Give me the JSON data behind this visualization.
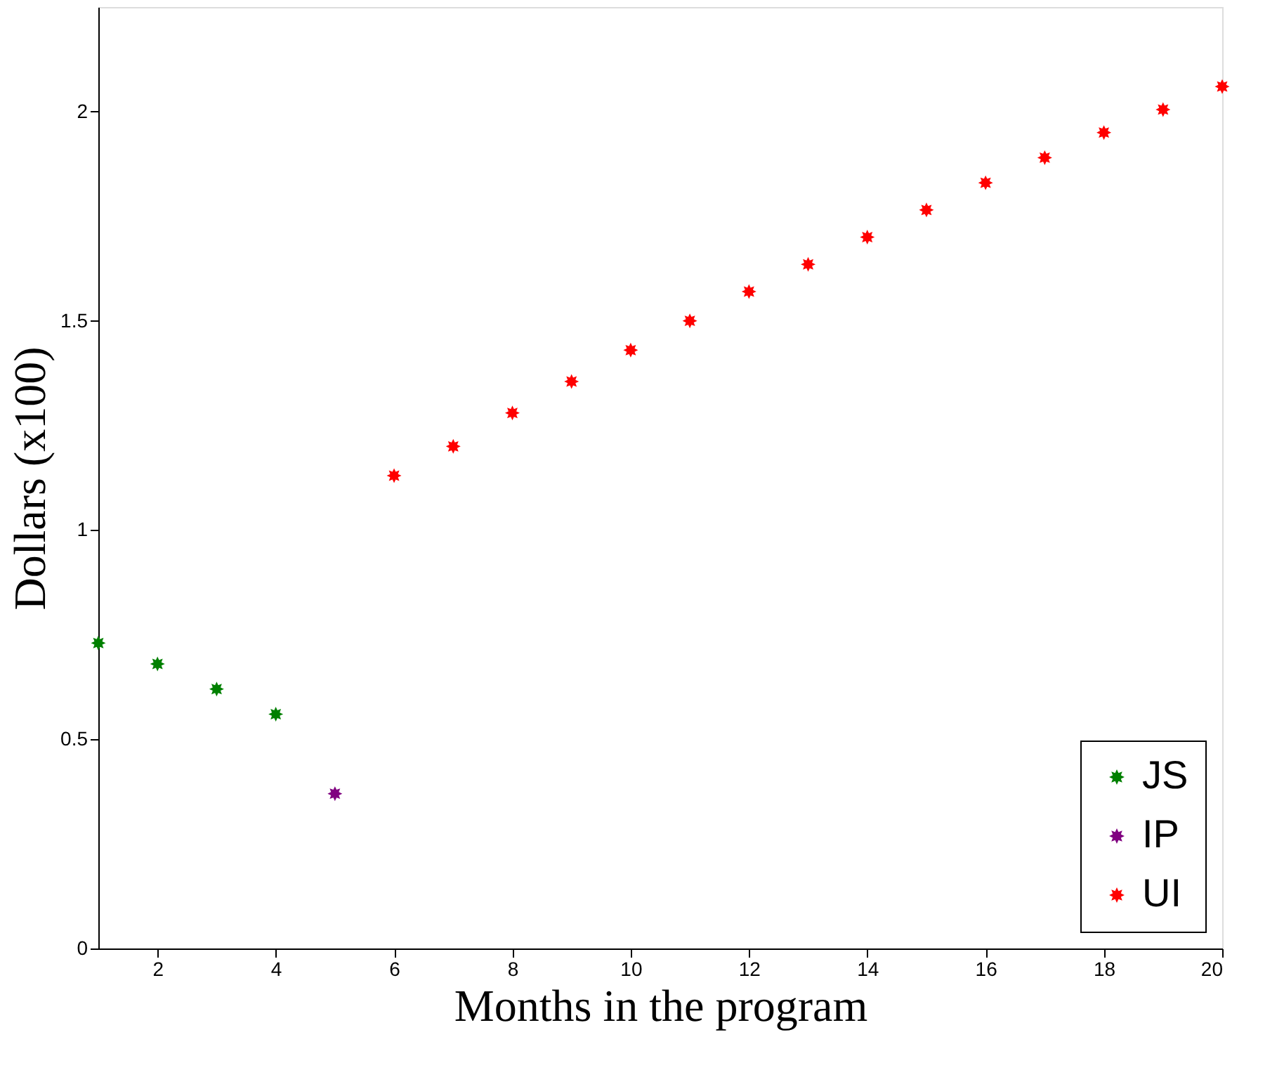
{
  "chart_data": {
    "type": "scatter",
    "xlabel": "Months in the program",
    "ylabel": "Dollars (x100)",
    "xlim": [
      1,
      20
    ],
    "xticks": [
      2,
      4,
      6,
      8,
      10,
      12,
      14,
      16,
      18,
      20
    ],
    "ylim": [
      0,
      2.25
    ],
    "yticks": [
      0,
      0.5,
      1,
      1.5,
      2
    ],
    "grid": false,
    "legend": "bottom right",
    "marker": "star",
    "series": [
      {
        "name": "JS",
        "color": "#008000",
        "x": [
          1,
          2,
          3,
          4
        ],
        "values": [
          0.73,
          0.68,
          0.62,
          0.56
        ]
      },
      {
        "name": "IP",
        "color": "#800080",
        "x": [
          5
        ],
        "values": [
          0.37
        ]
      },
      {
        "name": "UI",
        "color": "#ff0000",
        "x": [
          6,
          7,
          8,
          9,
          10,
          11,
          12,
          13,
          14,
          15,
          16,
          17,
          18,
          19,
          20
        ],
        "values": [
          1.13,
          1.2,
          1.28,
          1.355,
          1.43,
          1.5,
          1.57,
          1.635,
          1.7,
          1.765,
          1.83,
          1.89,
          1.95,
          2.005,
          2.06
        ]
      }
    ]
  }
}
